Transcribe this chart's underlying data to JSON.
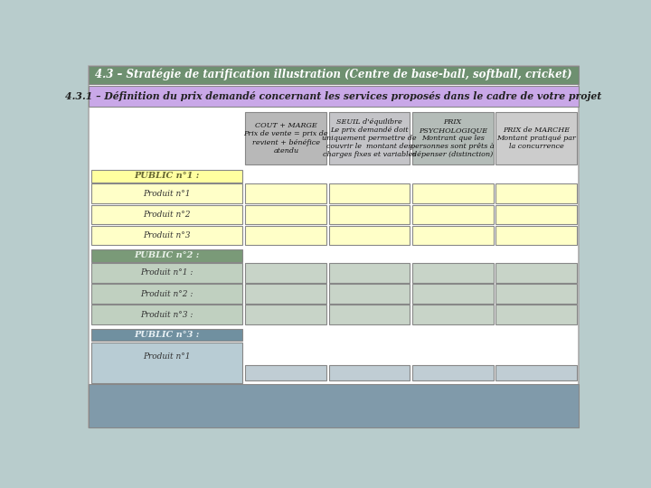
{
  "title": "4.3 – Stratégie de tarification illustration (Centre de base-ball, softball, cricket)",
  "subtitle": "4.3.1 – Définition du prix demandé concernant les services proposés dans le cadre de votre projet",
  "title_bg": "#6e9070",
  "subtitle_bg": "#c9a8e8",
  "col_headers": [
    {
      "label": "COUT + MARGE\nPrix de vente = prix de\nrevient + bénéfice\natendu",
      "bg": "#b8b8b8"
    },
    {
      "label": "SEUIL d'équilibre\nLe prix demandé doit\nuniquement permettre de\ncouvrir le  montant des\ncharges fixes et variables",
      "bg": "#c4c4c8"
    },
    {
      "label": "PRIX\nPSYCHOLOGIQUE\nMontrant que les\npersonnes sont prêts à\ndépenser (distinction)",
      "bg": "#b4bcb8"
    },
    {
      "label": "PRIX de MARCHE\nMontant pratiqué par\nla concurrence",
      "bg": "#cccccc"
    }
  ],
  "section1": {
    "header": "PUBLIC n°1 :",
    "header_bg": "#ffffa0",
    "header_text_color": "#666633",
    "rows": [
      "Produit n°1",
      "Produit n°2",
      "Produit n°3"
    ],
    "row_bg": "#ffffc8",
    "cell_bg": "#ffffc8"
  },
  "section2": {
    "header": "PUBLIC n°2 :",
    "header_bg": "#7a9a78",
    "header_text_color": "#e8f0e8",
    "rows": [
      "Produit n°1 :",
      "Produit n°2 :",
      "Produit n°3 :"
    ],
    "row_bg": "#c0d0c0",
    "cell_bg": "#c8d4c8"
  },
  "section3": {
    "header": "PUBLIC n°3 :",
    "header_bg": "#7090a0",
    "header_text_color": "#e8f0f4",
    "rows": [
      "Produit n°1"
    ],
    "row_bg": "#b8ccd4",
    "cell_bg": "#c0cdd4"
  },
  "background": "#b8cccc",
  "page_bg": "#ffffff",
  "bottom_bar_bg": "#809aaa"
}
